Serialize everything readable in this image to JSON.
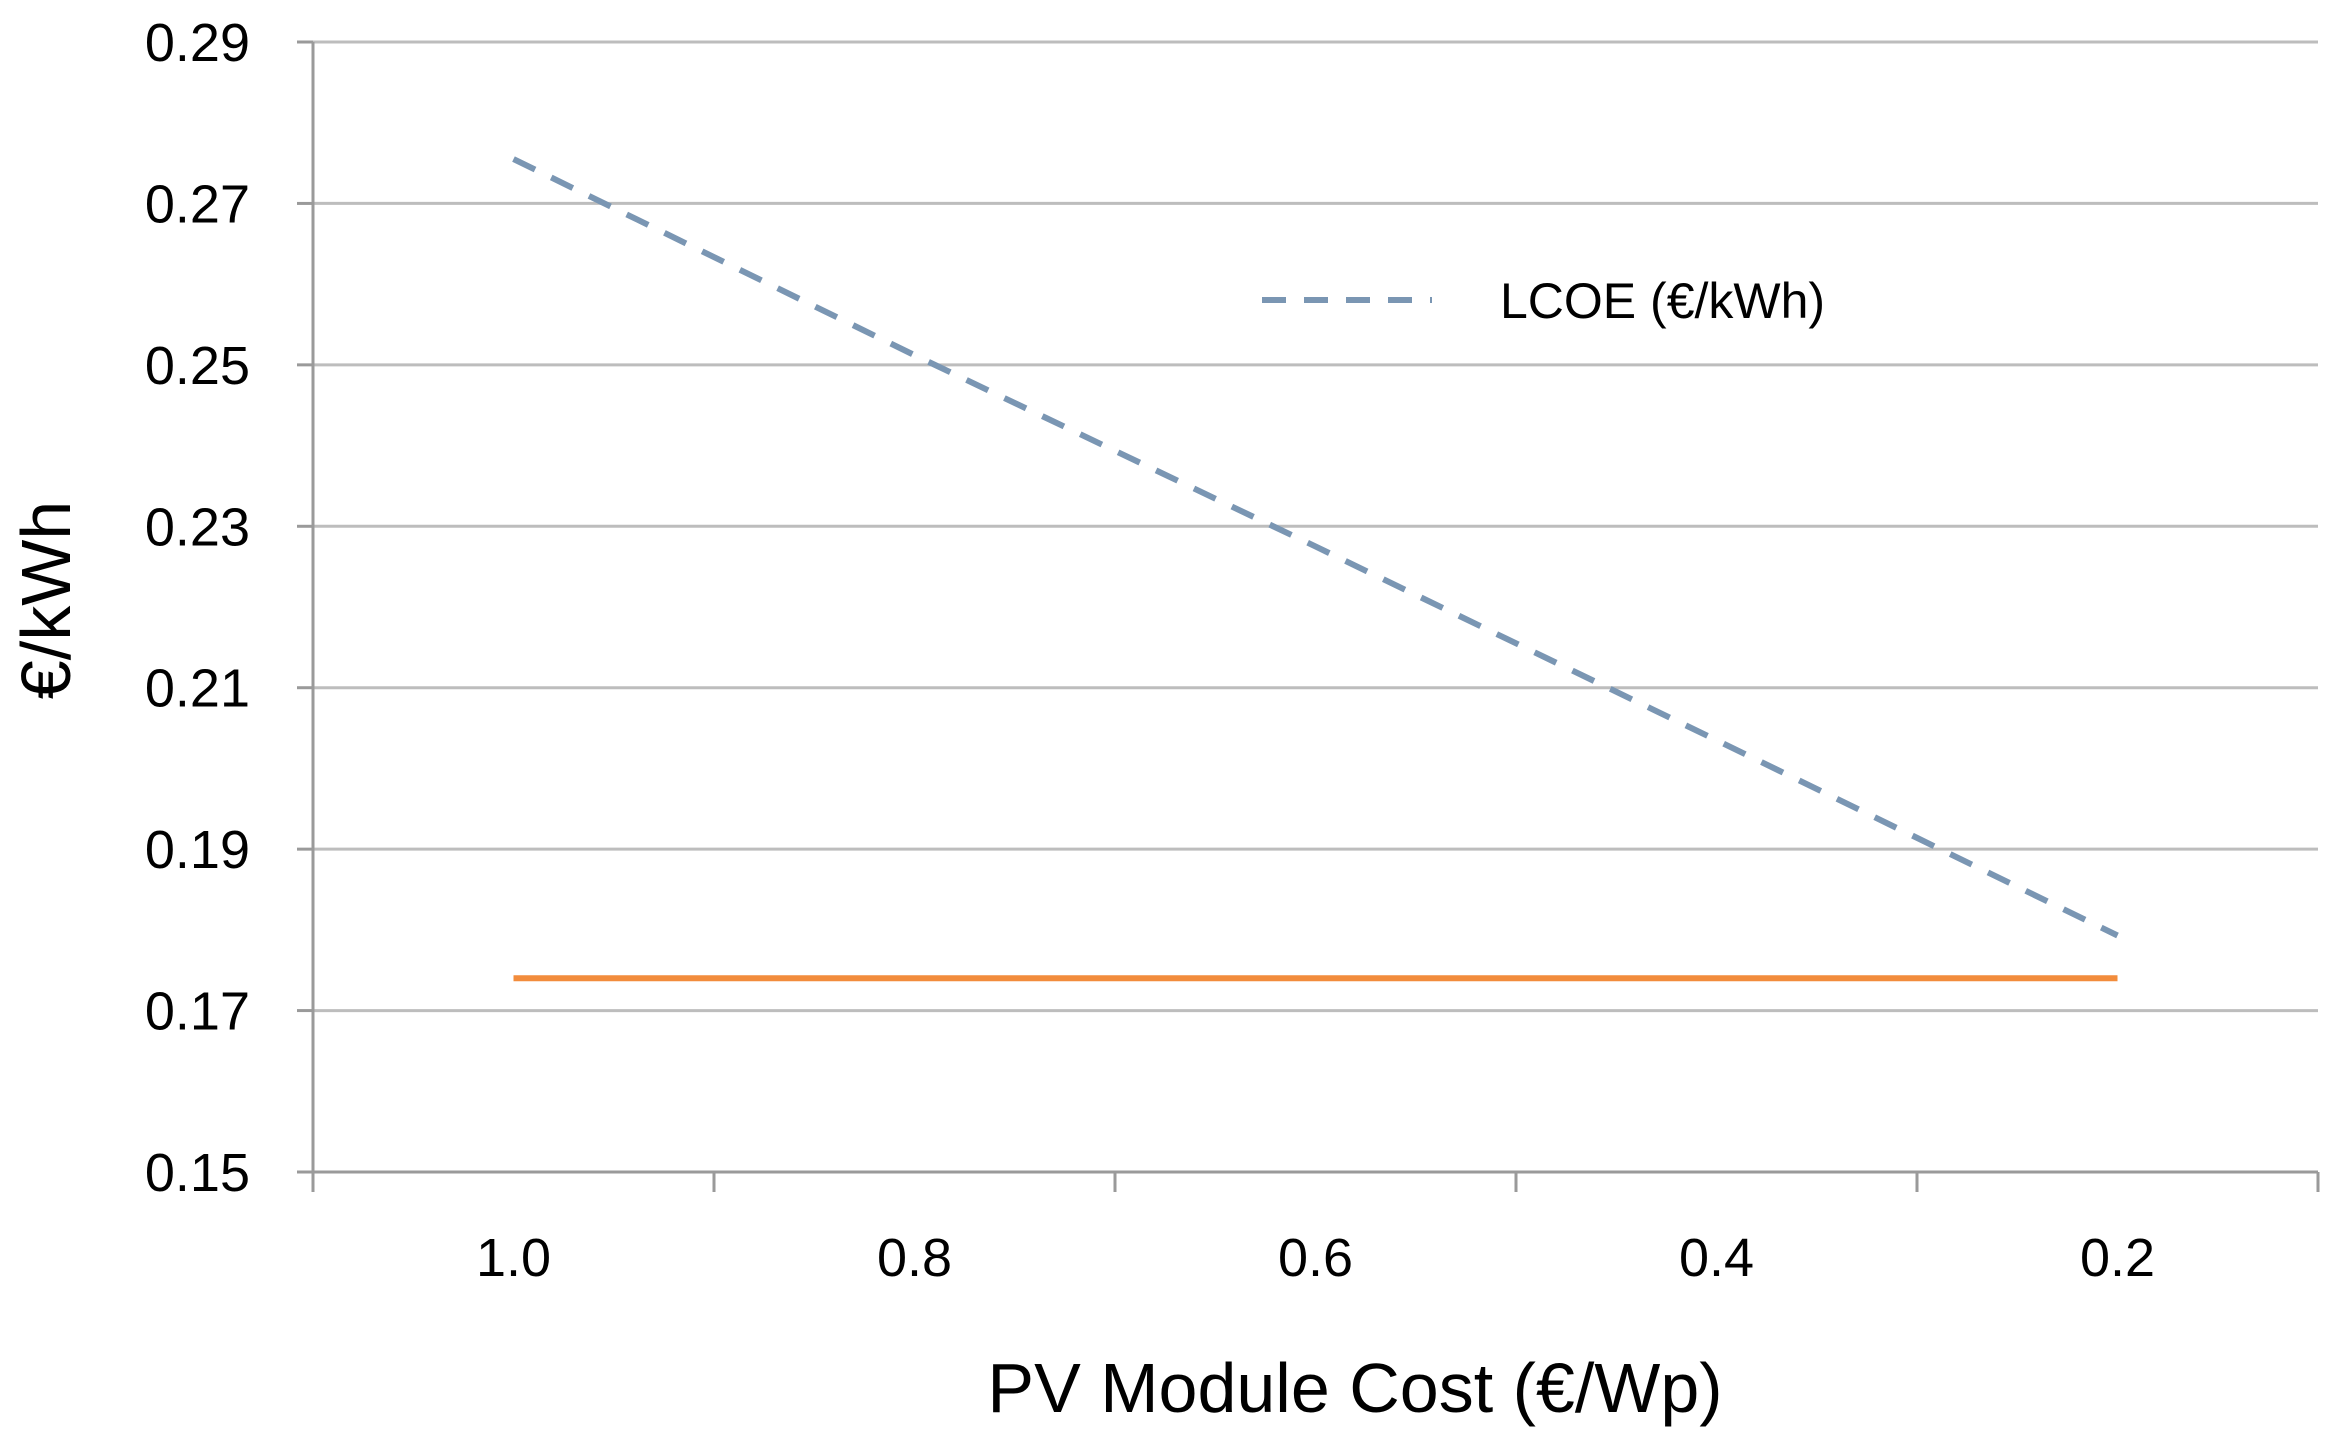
{
  "chart_data": {
    "type": "line",
    "title": "",
    "xlabel": "PV Module Cost (€/Wp)",
    "ylabel": "€/kWh",
    "categories": [
      "1.0",
      "0.8",
      "0.6",
      "0.4",
      "0.2"
    ],
    "x_reversed": true,
    "ylim": [
      0.15,
      0.29
    ],
    "y_ticks": [
      0.15,
      0.17,
      0.19,
      0.21,
      0.23,
      0.25,
      0.27,
      0.29
    ],
    "y_tick_labels": [
      "0.15",
      "0.17",
      "0.19",
      "0.21",
      "0.23",
      "0.25",
      "0.27",
      "0.29"
    ],
    "grid": true,
    "legend_position": "top-right",
    "series": [
      {
        "name": "LCOE (€/kWh)",
        "style": "dashed",
        "color": "#7a96b3",
        "show_in_legend": true,
        "values": [
          0.2755,
          0.2512,
          0.2275,
          0.2035,
          0.1793
        ]
      },
      {
        "name": "",
        "style": "solid",
        "color": "#f28c3c",
        "show_in_legend": false,
        "values": [
          0.174,
          0.174,
          0.174,
          0.174,
          0.174
        ]
      }
    ]
  }
}
